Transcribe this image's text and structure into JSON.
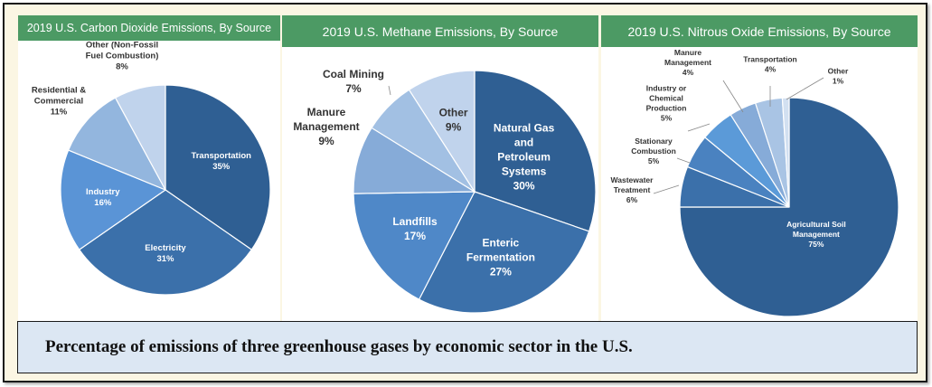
{
  "caption": "Percentage of emissions of three greenhouse gases by economic sector in the U.S.",
  "colors": {
    "header_bg": "#4c9a64",
    "caption_bg": "#dce7f3",
    "frame_bg": "#fbf6e3"
  },
  "chart_data": [
    {
      "type": "pie",
      "title": "2019 U.S. Carbon Dioxide Emissions, By Source",
      "slices": [
        {
          "label": [
            "Transportation"
          ],
          "value": 35,
          "value_label": "35%",
          "color": "#2f5f93"
        },
        {
          "label": [
            "Electricity"
          ],
          "value": 31,
          "value_label": "31%",
          "color": "#3b70aa"
        },
        {
          "label": [
            "Industry"
          ],
          "value": 16,
          "value_label": "16%",
          "color": "#5a94d6"
        },
        {
          "label": [
            "Residential &",
            "Commercial"
          ],
          "value": 11,
          "value_label": "11%",
          "color": "#93b6de"
        },
        {
          "label": [
            "Other (Non-Fossil",
            "Fuel Combustion)"
          ],
          "value": 8,
          "value_label": "8%",
          "color": "#c0d3ec"
        }
      ]
    },
    {
      "type": "pie",
      "title": "2019 U.S. Methane Emissions, By Source",
      "slices": [
        {
          "label": [
            "Natural Gas",
            "and",
            "Petroleum",
            "Systems"
          ],
          "value": 30,
          "value_label": "30%",
          "color": "#2f5f93"
        },
        {
          "label": [
            "Enteric",
            "Fermentation"
          ],
          "value": 27,
          "value_label": "27%",
          "color": "#3b70aa"
        },
        {
          "label": [
            "Landfills"
          ],
          "value": 17,
          "value_label": "17%",
          "color": "#4f88c8"
        },
        {
          "label": [
            "Manure",
            "Management"
          ],
          "value": 9,
          "value_label": "9%",
          "color": "#86abd8"
        },
        {
          "label": [
            "Coal Mining"
          ],
          "value": 7,
          "value_label": "7%",
          "color": "#a2c0e3"
        },
        {
          "label": [
            "Other"
          ],
          "value": 9,
          "value_label": "9%",
          "color": "#c0d3ec"
        }
      ]
    },
    {
      "type": "pie",
      "title": "2019 U.S. Nitrous Oxide Emissions, By Source",
      "slices": [
        {
          "label": [
            "Agricultural Soil",
            "Management"
          ],
          "value": 75,
          "value_label": "75%",
          "color": "#2f5f93"
        },
        {
          "label": [
            "Wastewater",
            "Treatment"
          ],
          "value": 6,
          "value_label": "6%",
          "color": "#3b70aa"
        },
        {
          "label": [
            "Stationary",
            "Combustion"
          ],
          "value": 5,
          "value_label": "5%",
          "color": "#4a82c0"
        },
        {
          "label": [
            "Industry or",
            "Chemical",
            "Production"
          ],
          "value": 5,
          "value_label": "5%",
          "color": "#5b9ad8"
        },
        {
          "label": [
            "Manure",
            "Management"
          ],
          "value": 4,
          "value_label": "4%",
          "color": "#86abd8"
        },
        {
          "label": [
            "Transportation"
          ],
          "value": 4,
          "value_label": "4%",
          "color": "#a9c4e4"
        },
        {
          "label": [
            "Other"
          ],
          "value": 1,
          "value_label": "1%",
          "color": "#d2e0f1"
        }
      ]
    }
  ]
}
